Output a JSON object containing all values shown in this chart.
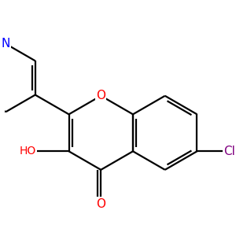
{
  "bg_color": "#ffffff",
  "bond_color": "#000000",
  "bond_width": 1.6,
  "atom_colors": {
    "O": "#ff0000",
    "N": "#0000ff",
    "Cl": "#800080",
    "C": "#000000"
  },
  "font_size": 10,
  "figsize": [
    3.0,
    3.0
  ],
  "dpi": 100
}
